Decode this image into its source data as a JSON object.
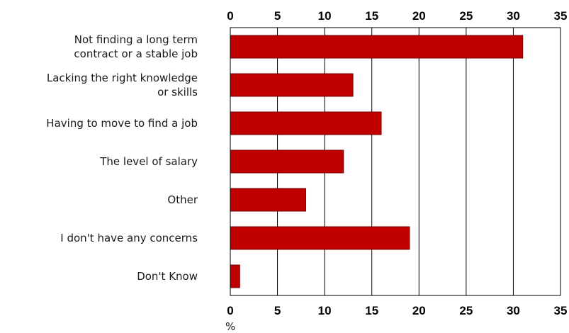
{
  "chart_data": {
    "type": "bar",
    "orientation": "horizontal",
    "categories": [
      [
        "Not finding a long term",
        "contract or a stable job"
      ],
      [
        "Lacking the right knowledge",
        "or skills"
      ],
      [
        "Having to move to find a job"
      ],
      [
        "The level of salary"
      ],
      [
        "Other"
      ],
      [
        "I don't have any concerns"
      ],
      [
        "Don't Know"
      ]
    ],
    "values": [
      31,
      13,
      16,
      12,
      8,
      19,
      1
    ],
    "xlim": [
      0,
      35
    ],
    "xticks": [
      "0",
      "5",
      "10",
      "15",
      "20",
      "25",
      "30",
      "35"
    ],
    "tick_positions": "top-and-bottom",
    "xlabel": "%",
    "grid": "vertical",
    "bar_color": "#c00000",
    "bar_edge_color": "#7a0000",
    "grid_color": "#000000"
  }
}
